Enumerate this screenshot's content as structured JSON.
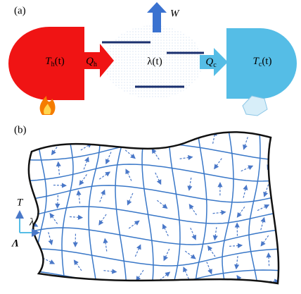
{
  "panel_a": {
    "label": "(a)",
    "hot": {
      "symbol": "T",
      "subscript": "h",
      "argument": "(t)"
    },
    "heat_in": {
      "symbol": "Q",
      "subscript": "h"
    },
    "work": "W",
    "medium": "λ(t)",
    "heat_out": {
      "symbol": "Q",
      "subscript": "c"
    },
    "cold": {
      "symbol": "T",
      "subscript": "c",
      "argument": "(t)"
    }
  },
  "panel_b": {
    "label": "(b)",
    "axis_up": "T",
    "axis_right": "λ",
    "manifold": "Λ"
  }
}
